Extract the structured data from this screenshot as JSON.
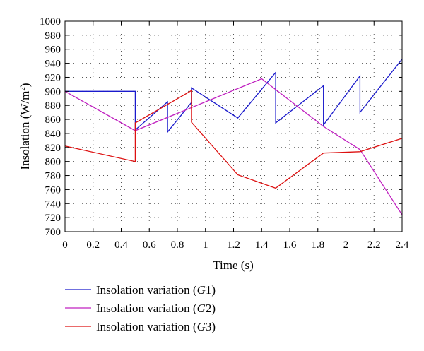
{
  "chart_data": {
    "type": "line",
    "xlabel": "Time (s)",
    "ylabel_main": "Insolation (W/m",
    "ylabel_sup": "2",
    "ylabel_close": ")",
    "xlim": [
      0,
      2.4
    ],
    "ylim": [
      700,
      1000
    ],
    "xticks": [
      0,
      0.2,
      0.4,
      0.6,
      0.8,
      1,
      1.2,
      1.4,
      1.6,
      1.8,
      2,
      2.2,
      2.4
    ],
    "yticks": [
      700,
      720,
      740,
      760,
      780,
      800,
      820,
      840,
      860,
      880,
      900,
      920,
      940,
      960,
      980,
      1000
    ],
    "grid": true,
    "legend_position": "bottom-left",
    "series": [
      {
        "name": "Insolation variation (G1)",
        "legend_prefix": "Insolation variation (",
        "legend_var": "G",
        "legend_suffix": "1)",
        "color": "#1a1acc",
        "x": [
          0,
          0.5,
          0.5,
          0.73,
          0.73,
          0.9,
          0.9,
          1.23,
          1.5,
          1.5,
          1.84,
          1.84,
          2.1,
          2.1,
          2.4
        ],
        "y": [
          900,
          900,
          845,
          885,
          842,
          884,
          905,
          862,
          927,
          855,
          908,
          852,
          922,
          870,
          946
        ]
      },
      {
        "name": "Insolation variation (G2)",
        "legend_prefix": "Insolation variation (",
        "legend_var": "G",
        "legend_suffix": "2)",
        "color": "#c020c0",
        "x": [
          0,
          0.5,
          1.4,
          1.84,
          2.1,
          2.4
        ],
        "y": [
          900,
          844,
          918,
          850,
          817,
          724
        ]
      },
      {
        "name": "Insolation variation (G3)",
        "legend_prefix": "Insolation variation (",
        "legend_var": "G",
        "legend_suffix": "3)",
        "color": "#dd1111",
        "x": [
          0,
          0.5,
          0.5,
          0.9,
          0.9,
          1.23,
          1.5,
          1.84,
          2.1,
          2.4
        ],
        "y": [
          822,
          800,
          855,
          901,
          856,
          781,
          762,
          812,
          814,
          833
        ]
      }
    ]
  }
}
